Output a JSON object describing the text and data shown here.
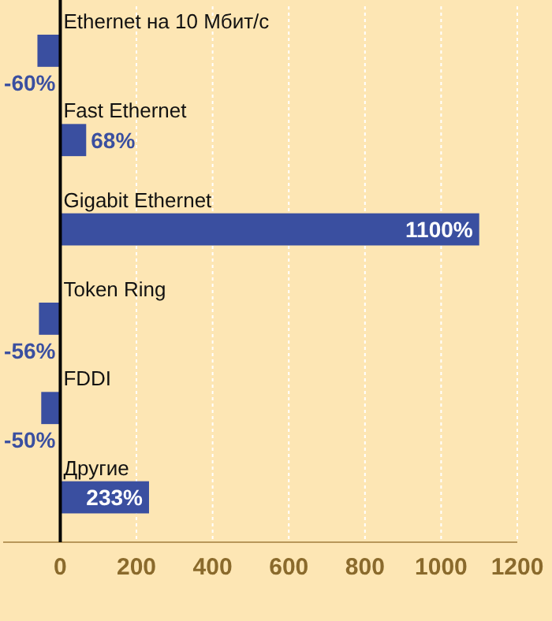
{
  "chart_data": {
    "type": "bar",
    "orientation": "horizontal",
    "categories": [
      "Ethernet на 10 Мбит/с",
      "Fast Ethernet",
      "Gigabit Ethernet",
      "Token Ring",
      "FDDI",
      "Другие"
    ],
    "values": [
      -60,
      68,
      1100,
      -56,
      -50,
      233
    ],
    "value_labels": [
      "-60%",
      "68%",
      "1100%",
      "-56%",
      "-50%",
      "233%"
    ],
    "color": "#3a4fa0",
    "xlim": [
      -150,
      1200
    ],
    "xticks": [
      0,
      200,
      400,
      600,
      800,
      1000,
      1200
    ],
    "grid": "x"
  }
}
